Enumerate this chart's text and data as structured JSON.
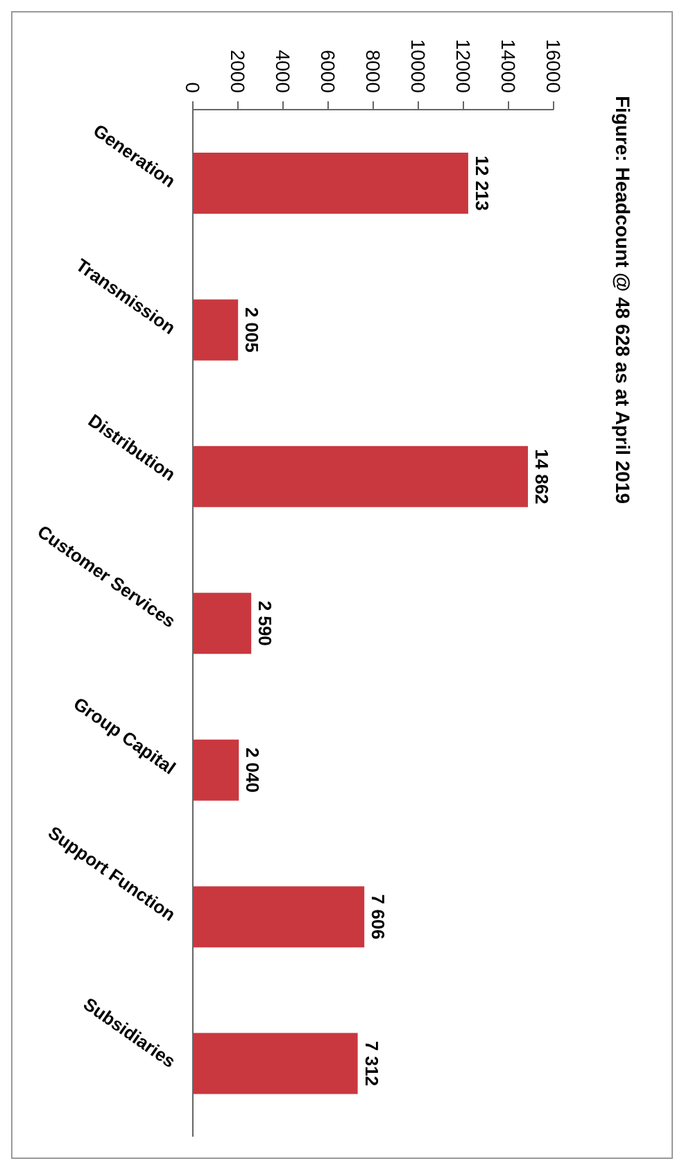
{
  "chart_data": {
    "type": "bar",
    "orientation": "horizontal",
    "title": "Figure: Headcount @ 48 628 as at April 2019",
    "categories": [
      "Generation",
      "Transmission",
      "Distribution",
      "Customer Services",
      "Group Capital",
      "Support Function",
      "Subsidiaries"
    ],
    "values": [
      12213,
      2005,
      14862,
      2590,
      2040,
      7606,
      7312
    ],
    "value_labels": [
      "12 213",
      "2 005",
      "14 862",
      "2 590",
      "2 040",
      "7 606",
      "7 312"
    ],
    "color": "#c9383f",
    "xlim": [
      0,
      16000
    ],
    "xticks": [
      0,
      2000,
      4000,
      6000,
      8000,
      10000,
      12000,
      14000,
      16000
    ]
  }
}
